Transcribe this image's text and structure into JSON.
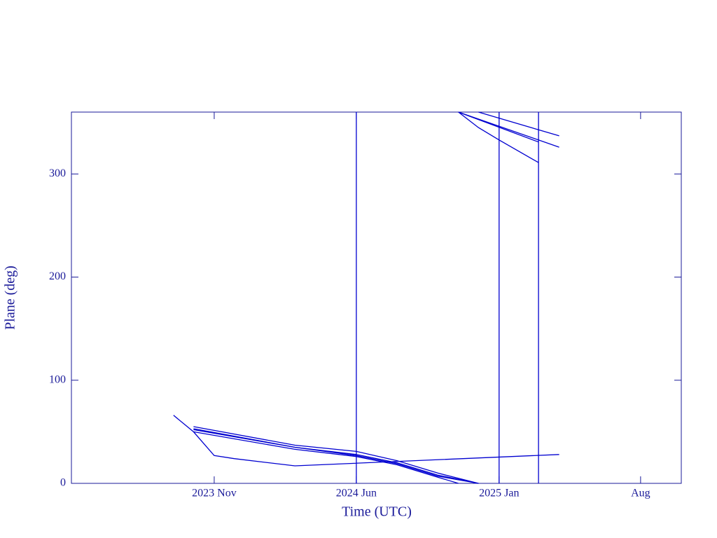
{
  "chart_data": {
    "type": "line",
    "xlabel": "Time (UTC)",
    "ylabel": "Plane (deg)",
    "xlim": [
      "2023-04",
      "2025-10"
    ],
    "xticks": [
      {
        "value": "2023-11",
        "label": "2023 Nov"
      },
      {
        "value": "2024-06",
        "label": "2024 Jun"
      },
      {
        "value": "2025-01",
        "label": "2025 Jan"
      },
      {
        "value": "2025-08",
        "label": "Aug"
      }
    ],
    "ylim": [
      0,
      360
    ],
    "yticks": [
      0,
      100,
      200,
      300
    ],
    "series": [
      {
        "color": "#0000d0",
        "x": [
          "2023-09",
          "2023-10",
          "2023-11",
          "2023-12",
          "2024-03",
          "2025-04"
        ],
        "values": [
          66,
          50,
          27,
          24,
          17,
          28
        ]
      },
      {
        "color": "#0000d0",
        "x": [
          "2023-10",
          "2024-03",
          "2024-06",
          "2024-08",
          "2024-10",
          "2024-12",
          null,
          "2024-12",
          "2025-04"
        ],
        "values": [
          55,
          37,
          31,
          22,
          10,
          0,
          null,
          360,
          337
        ]
      },
      {
        "color": "#0000d0",
        "x": [
          "2023-10",
          "2024-03",
          "2024-06",
          "2024-08",
          "2024-10",
          "2024-12",
          null,
          "2024-11",
          "2025-04"
        ],
        "values": [
          53,
          35,
          28,
          20,
          8,
          0,
          null,
          360,
          326
        ]
      },
      {
        "color": "#0000d0",
        "x": [
          "2023-10",
          "2024-03",
          "2024-06",
          "2024-08",
          "2024-10",
          "2024-12",
          null,
          "2024-11",
          "2025-03"
        ],
        "values": [
          52,
          35,
          27,
          19,
          7,
          0,
          null,
          360,
          331
        ]
      },
      {
        "color": "#0000d0",
        "x": [
          "2023-10",
          "2024-03",
          "2024-06",
          "2024-08",
          "2024-10",
          "2024-11",
          null,
          "2024-11",
          "2024-12",
          "2025-01",
          "2025-03"
        ],
        "values": [
          50,
          33,
          26,
          18,
          6,
          0,
          null,
          360,
          345,
          333,
          311
        ]
      },
      {
        "color": "#0000d0",
        "x": [
          "2024-06",
          "2024-06"
        ],
        "values": [
          0,
          360
        ]
      },
      {
        "color": "#0000d0",
        "x": [
          "2025-01",
          "2025-01"
        ],
        "values": [
          0,
          360
        ]
      },
      {
        "color": "#0000d0",
        "x": [
          "2025-03",
          "2025-03"
        ],
        "values": [
          0,
          360
        ]
      }
    ]
  }
}
